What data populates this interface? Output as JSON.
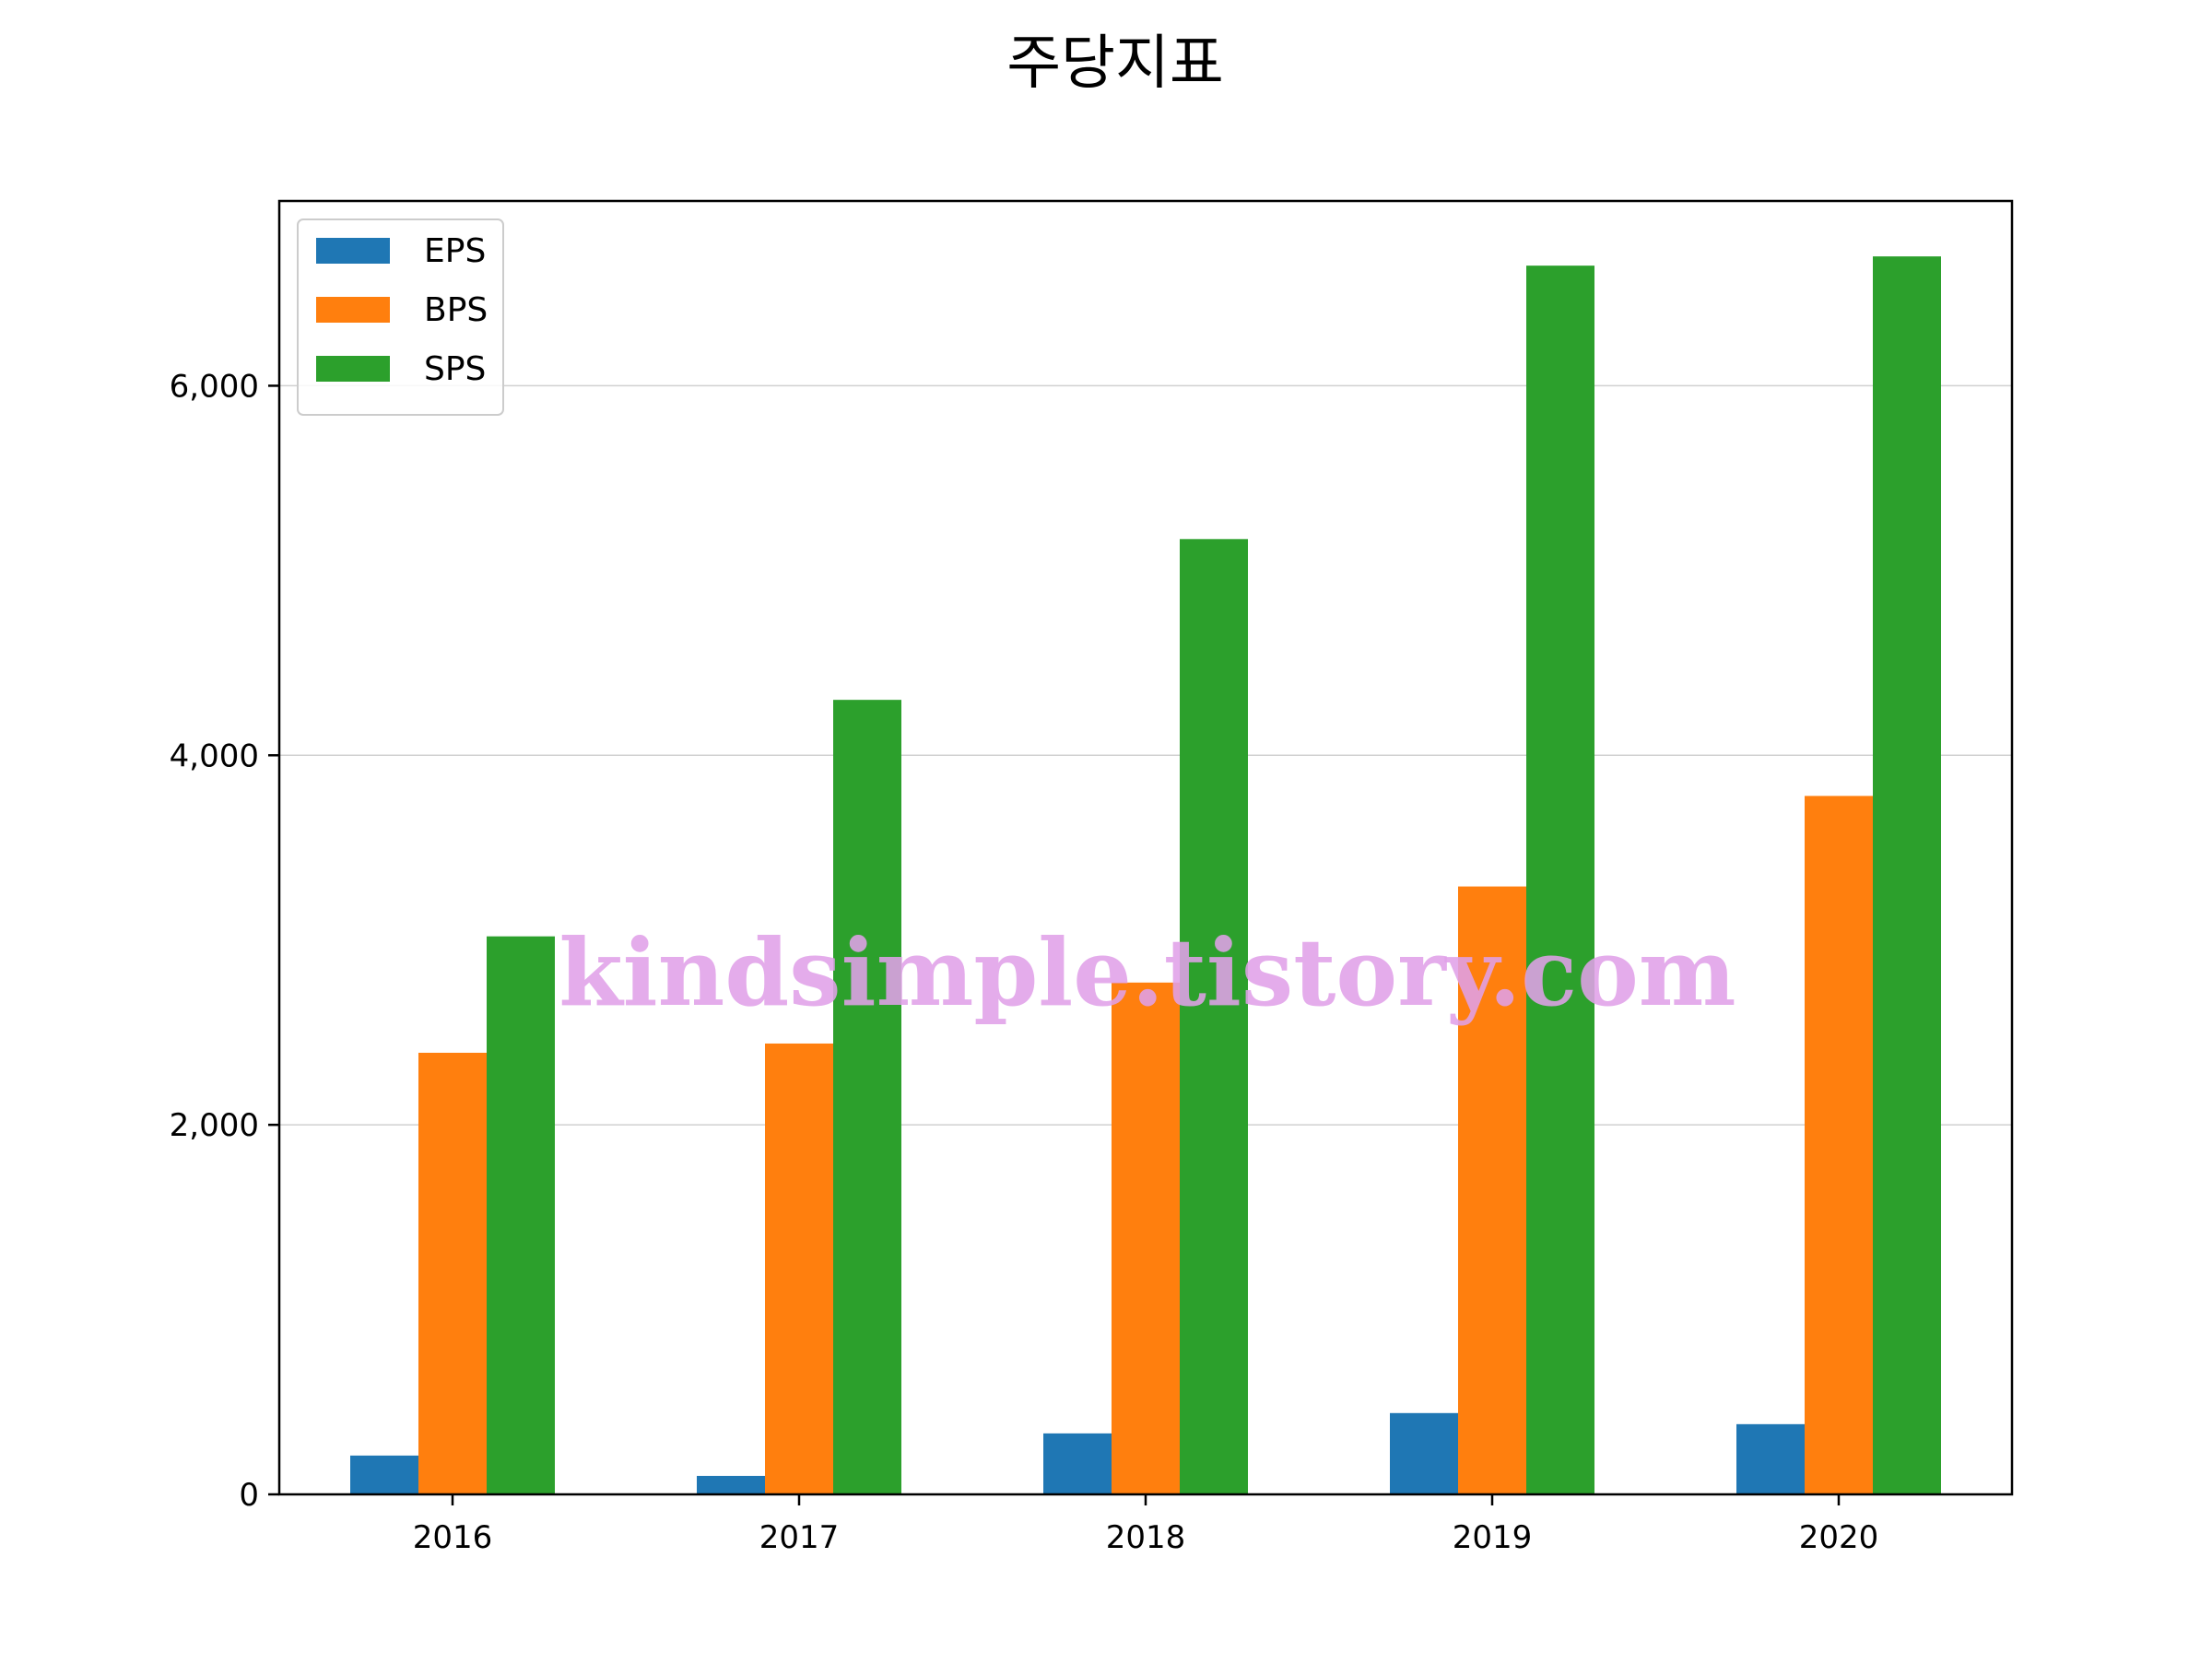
{
  "chart_data": {
    "type": "bar",
    "title": "주당지표",
    "xlabel": "",
    "ylabel": "",
    "categories": [
      "2016",
      "2017",
      "2018",
      "2019",
      "2020"
    ],
    "series": [
      {
        "name": "EPS",
        "color": "#1f77b4",
        "values": [
          210,
          100,
          330,
          440,
          380
        ]
      },
      {
        "name": "BPS",
        "color": "#ff7f0e",
        "values": [
          2390,
          2440,
          2770,
          3290,
          3780
        ]
      },
      {
        "name": "SPS",
        "color": "#2ca02c",
        "values": [
          3020,
          4300,
          5170,
          6650,
          6700
        ]
      }
    ],
    "ylim": [
      0,
      7000
    ],
    "yticks": [
      0,
      2000,
      4000,
      6000
    ],
    "ytick_labels": [
      "0",
      "2,000",
      "4,000",
      "6,000"
    ],
    "grid": "y",
    "legend_position": "upper-left",
    "watermark": "kindsimple.tistory.com"
  }
}
